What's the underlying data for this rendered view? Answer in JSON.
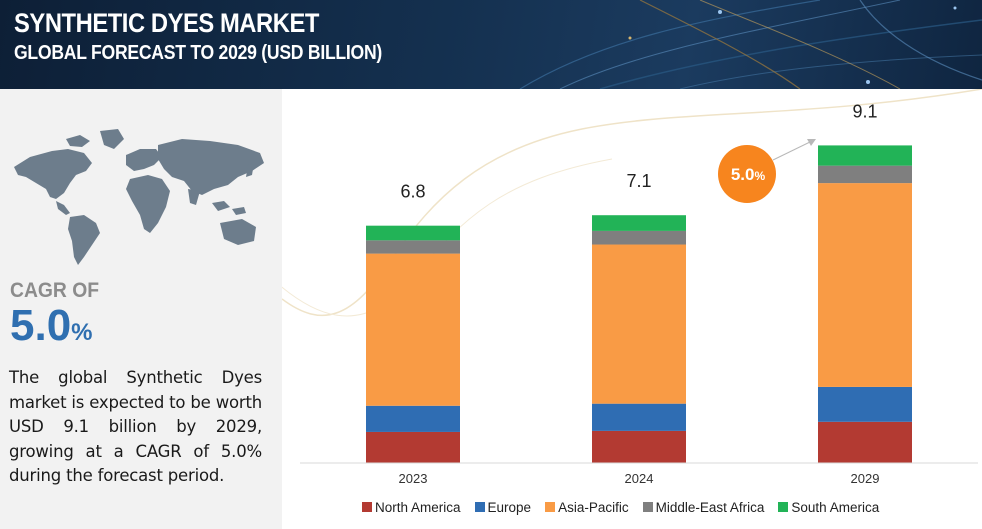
{
  "header": {
    "title": "SYNTHETIC DYES MARKET",
    "subtitle": "GLOBAL FORECAST TO 2029 (USD BILLION)"
  },
  "left_panel": {
    "cagr_label": "CAGR OF",
    "cagr_value": "5.0",
    "cagr_unit": "%",
    "description": "The global Synthetic Dyes market is expected to be worth USD 9.1 billion by 2029, growing at a CAGR of 5.0% during the forecast period."
  },
  "cagr_bubble": {
    "value": "5.0",
    "unit": "%",
    "color": "#f7851e"
  },
  "chart_data": {
    "type": "bar",
    "stacked": true,
    "categories": [
      "2023",
      "2024",
      "2029"
    ],
    "totals": [
      "6.8",
      "7.1",
      "9.1"
    ],
    "series": [
      {
        "name": "North America",
        "color": "#b33a32",
        "values": [
          0.89,
          0.92,
          1.18
        ]
      },
      {
        "name": "Europe",
        "color": "#2f6db3",
        "values": [
          0.75,
          0.78,
          1.0
        ]
      },
      {
        "name": "Asia-Pacific",
        "color": "#f99b45",
        "values": [
          4.36,
          4.56,
          5.84
        ]
      },
      {
        "name": "Middle-East Africa",
        "color": "#7f7f7f",
        "values": [
          0.38,
          0.39,
          0.5
        ]
      },
      {
        "name": "South America",
        "color": "#22b357",
        "values": [
          0.42,
          0.45,
          0.58
        ]
      }
    ],
    "ylim": [
      0,
      10
    ],
    "grid": false,
    "legend_position": "bottom"
  }
}
